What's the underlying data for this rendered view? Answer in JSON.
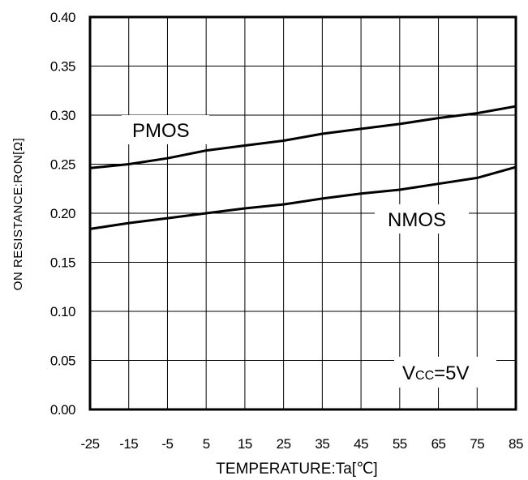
{
  "chart_data": {
    "type": "line",
    "xlabel": "TEMPERATURE:Ta[℃]",
    "ylabel": "ON RESISTANCE:RON[Ω]",
    "xlim": [
      -25,
      85
    ],
    "ylim": [
      0,
      0.4
    ],
    "xticks": [
      "-25",
      "-15",
      "-5",
      "5",
      "15",
      "25",
      "35",
      "45",
      "55",
      "65",
      "75",
      "85"
    ],
    "yticks": [
      "0.00",
      "0.05",
      "0.10",
      "0.15",
      "0.20",
      "0.25",
      "0.30",
      "0.35",
      "0.40"
    ],
    "grid": true,
    "series": [
      {
        "name": "PMOS",
        "x": [
          -25,
          -15,
          -5,
          5,
          15,
          25,
          35,
          45,
          55,
          65,
          75,
          85
        ],
        "y": [
          0.246,
          0.25,
          0.256,
          0.264,
          0.269,
          0.274,
          0.281,
          0.286,
          0.291,
          0.297,
          0.302,
          0.309
        ]
      },
      {
        "name": "NMOS",
        "x": [
          -25,
          -15,
          -5,
          5,
          15,
          25,
          35,
          45,
          55,
          65,
          75,
          85
        ],
        "y": [
          0.184,
          0.19,
          0.195,
          0.2,
          0.205,
          0.209,
          0.215,
          0.22,
          0.224,
          0.23,
          0.236,
          0.247
        ]
      }
    ],
    "annotations": {
      "condition_main": "V",
      "condition_sub": "CC",
      "condition_value": "=5V"
    },
    "colors": {
      "line": "#000000",
      "grid": "#000000",
      "background": "#ffffff"
    }
  }
}
